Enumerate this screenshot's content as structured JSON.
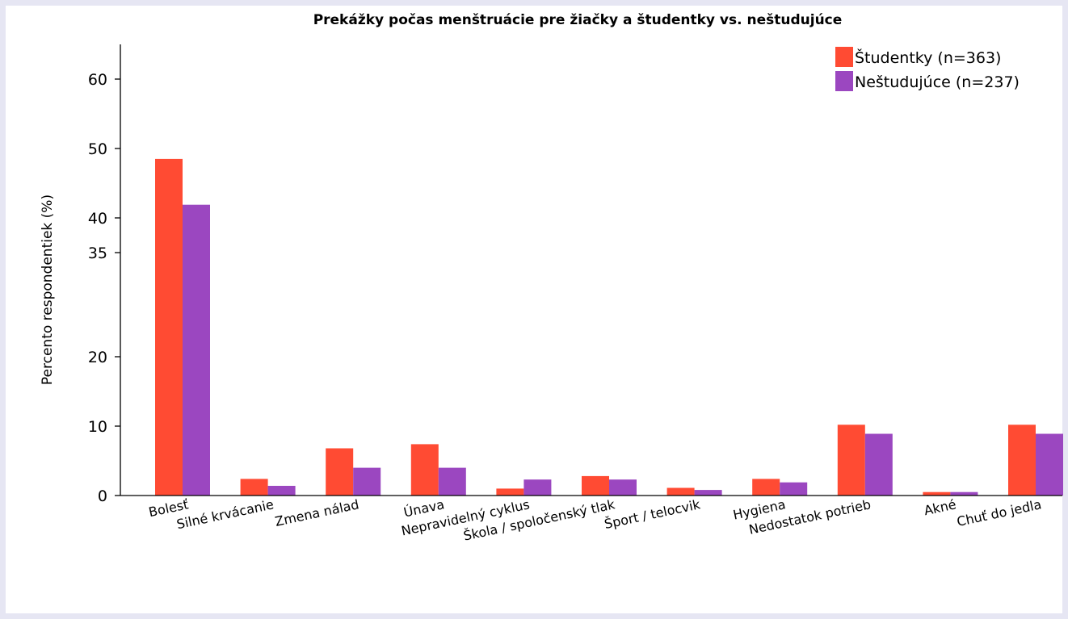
{
  "chart_data": {
    "type": "bar",
    "title": "Prekážky počas menštruácie pre žiačky a študentky vs. neštudujúce",
    "ylabel": "Percento respondentiek (%)",
    "xlabel": "",
    "categories": [
      "Bolesť",
      "Silné krvácanie",
      "Zmena nálad",
      "Únava",
      "Nepravidelný cyklus",
      "Škola / spoločenský tlak",
      "Šport / telocvik",
      "Hygiena",
      "Nedostatok potrieb",
      "Akné",
      "Chuť do jedla"
    ],
    "yticks": [
      0,
      10,
      20,
      35,
      40,
      50,
      60
    ],
    "ylim": [
      0,
      65
    ],
    "series": [
      {
        "name": "Študentky (n=363)",
        "color": "#ff4b33",
        "values": [
          48.5,
          2.4,
          6.8,
          7.4,
          1.0,
          2.8,
          1.1,
          2.4,
          10.2,
          0.5,
          10.2
        ]
      },
      {
        "name": "Neštudujúce (n=237)",
        "color": "#9b47c0",
        "values": [
          41.9,
          1.4,
          4.0,
          4.0,
          2.3,
          2.3,
          0.8,
          1.9,
          8.9,
          0.5,
          8.9
        ]
      }
    ],
    "legend": "top-right",
    "grid": false
  }
}
